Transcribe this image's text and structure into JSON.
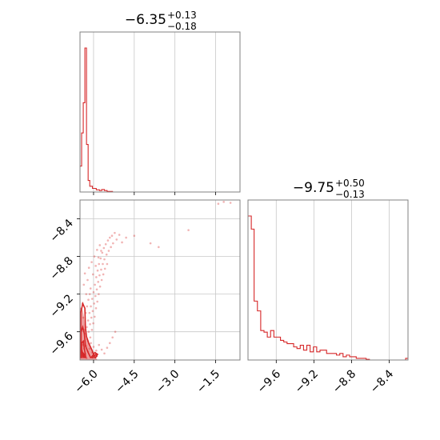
{
  "colors": {
    "series": "#d62728",
    "frame": "#808080",
    "grid": "#c8c8c8"
  },
  "chart_data": [
    {
      "type": "histogram",
      "panel": "top-left",
      "title": {
        "value": "−6.35",
        "plus": "+0.13",
        "minus": "−0.18"
      },
      "xlim": [
        -6.5,
        -0.6
      ],
      "bins": [
        [
          -6.5,
          -6.44,
          0.18
        ],
        [
          -6.44,
          -6.38,
          0.41
        ],
        [
          -6.38,
          -6.32,
          0.62
        ],
        [
          -6.32,
          -6.26,
          1.0
        ],
        [
          -6.26,
          -6.2,
          0.33
        ],
        [
          -6.2,
          -6.14,
          0.08
        ],
        [
          -6.14,
          -6.04,
          0.04
        ],
        [
          -6.04,
          -5.9,
          0.025
        ],
        [
          -5.9,
          -5.78,
          0.015
        ],
        [
          -5.78,
          -5.7,
          0.01
        ],
        [
          -5.7,
          -5.6,
          0.017
        ],
        [
          -5.6,
          -5.5,
          0.01
        ],
        [
          -5.5,
          -5.3,
          0.004
        ],
        [
          -5.3,
          -0.6,
          0.0
        ]
      ],
      "x_ticks": [
        "−6.0",
        "−4.5",
        "−3.0",
        "−1.5"
      ],
      "x_tick_values": [
        -6.0,
        -4.5,
        -3.0,
        -1.5
      ],
      "y_ticks": []
    },
    {
      "type": "histogram",
      "panel": "bottom-right",
      "title": {
        "value": "−9.75",
        "plus": "+0.50",
        "minus": "−0.13"
      },
      "xlim": [
        -9.9,
        -8.2
      ],
      "bins": [
        [
          -9.9,
          -9.865,
          0.88
        ],
        [
          -9.865,
          -9.835,
          0.8
        ],
        [
          -9.835,
          -9.8,
          0.36
        ],
        [
          -9.8,
          -9.765,
          0.3
        ],
        [
          -9.765,
          -9.73,
          0.18
        ],
        [
          -9.73,
          -9.695,
          0.17
        ],
        [
          -9.695,
          -9.66,
          0.14
        ],
        [
          -9.66,
          -9.625,
          0.18
        ],
        [
          -9.625,
          -9.59,
          0.14
        ],
        [
          -9.59,
          -9.555,
          0.14
        ],
        [
          -9.555,
          -9.52,
          0.12
        ],
        [
          -9.52,
          -9.485,
          0.11
        ],
        [
          -9.485,
          -9.45,
          0.1
        ],
        [
          -9.45,
          -9.415,
          0.1
        ],
        [
          -9.415,
          -9.38,
          0.08
        ],
        [
          -9.38,
          -9.345,
          0.07
        ],
        [
          -9.345,
          -9.31,
          0.09
        ],
        [
          -9.31,
          -9.275,
          0.06
        ],
        [
          -9.275,
          -9.24,
          0.09
        ],
        [
          -9.24,
          -9.205,
          0.05
        ],
        [
          -9.205,
          -9.17,
          0.08
        ],
        [
          -9.17,
          -9.135,
          0.05
        ],
        [
          -9.135,
          -9.1,
          0.06
        ],
        [
          -9.1,
          -9.065,
          0.06
        ],
        [
          -9.065,
          -9.03,
          0.04
        ],
        [
          -9.03,
          -8.995,
          0.04
        ],
        [
          -8.995,
          -8.96,
          0.04
        ],
        [
          -8.96,
          -8.925,
          0.03
        ],
        [
          -8.925,
          -8.89,
          0.04
        ],
        [
          -8.89,
          -8.855,
          0.02
        ],
        [
          -8.855,
          -8.82,
          0.03
        ],
        [
          -8.82,
          -8.785,
          0.02
        ],
        [
          -8.785,
          -8.75,
          0.02
        ],
        [
          -8.75,
          -8.715,
          0.01
        ],
        [
          -8.715,
          -8.68,
          0.01
        ],
        [
          -8.68,
          -8.645,
          0.01
        ],
        [
          -8.645,
          -8.61,
          0.004
        ],
        [
          -8.61,
          -8.575,
          0.0
        ],
        [
          -8.575,
          -8.54,
          0.0
        ],
        [
          -8.54,
          -8.505,
          0.0
        ],
        [
          -8.505,
          -8.47,
          0.0
        ],
        [
          -8.47,
          -8.435,
          0.0
        ],
        [
          -8.435,
          -8.4,
          0.0
        ],
        [
          -8.4,
          -8.365,
          0.0
        ],
        [
          -8.365,
          -8.33,
          0.0
        ],
        [
          -8.33,
          -8.295,
          0.0
        ],
        [
          -8.295,
          -8.26,
          0.0
        ],
        [
          -8.26,
          -8.225,
          0.0
        ],
        [
          -8.225,
          -8.2,
          0.01
        ]
      ],
      "x_ticks": [
        "−9.6",
        "−9.2",
        "−8.8",
        "−8.4"
      ],
      "x_tick_values": [
        -9.6,
        -9.2,
        -8.8,
        -8.4
      ],
      "y_ticks": []
    },
    {
      "type": "scatter",
      "panel": "bottom-left",
      "xlim": [
        -6.5,
        -0.6
      ],
      "ylim": [
        -9.9,
        -8.2
      ],
      "x_ticks": [
        "−6.0",
        "−4.5",
        "−3.0",
        "−1.5"
      ],
      "x_tick_values": [
        -6.0,
        -4.5,
        -3.0,
        -1.5
      ],
      "y_ticks": [
        "−8.4",
        "−8.8",
        "−9.2",
        "−9.6"
      ],
      "y_tick_values": [
        -8.4,
        -8.8,
        -9.2,
        -9.6
      ],
      "points": [
        [
          -6.45,
          -9.85
        ],
        [
          -6.42,
          -9.8
        ],
        [
          -6.4,
          -9.74
        ],
        [
          -6.38,
          -9.86
        ],
        [
          -6.35,
          -9.78
        ],
        [
          -6.33,
          -9.7
        ],
        [
          -6.31,
          -9.83
        ],
        [
          -6.3,
          -9.62
        ],
        [
          -6.28,
          -9.75
        ],
        [
          -6.26,
          -9.88
        ],
        [
          -6.25,
          -9.55
        ],
        [
          -6.23,
          -9.68
        ],
        [
          -6.21,
          -9.81
        ],
        [
          -6.2,
          -9.48
        ],
        [
          -6.18,
          -9.6
        ],
        [
          -6.16,
          -9.73
        ],
        [
          -6.15,
          -9.4
        ],
        [
          -6.13,
          -9.52
        ],
        [
          -6.12,
          -9.66
        ],
        [
          -6.1,
          -9.33
        ],
        [
          -6.08,
          -9.45
        ],
        [
          -6.06,
          -9.58
        ],
        [
          -6.05,
          -9.25
        ],
        [
          -6.03,
          -9.38
        ],
        [
          -6.01,
          -9.51
        ],
        [
          -6.0,
          -9.18
        ],
        [
          -5.98,
          -9.3
        ],
        [
          -5.96,
          -9.44
        ],
        [
          -5.95,
          -9.1
        ],
        [
          -5.93,
          -9.22
        ],
        [
          -5.91,
          -9.35
        ],
        [
          -5.9,
          -9.02
        ],
        [
          -5.88,
          -9.15
        ],
        [
          -5.86,
          -9.28
        ],
        [
          -5.85,
          -8.95
        ],
        [
          -5.83,
          -9.07
        ],
        [
          -5.81,
          -9.2
        ],
        [
          -5.8,
          -8.88
        ],
        [
          -5.78,
          -9.0
        ],
        [
          -5.76,
          -9.12
        ],
        [
          -5.74,
          -8.82
        ],
        [
          -5.72,
          -8.94
        ],
        [
          -5.7,
          -9.05
        ],
        [
          -5.68,
          -8.76
        ],
        [
          -5.66,
          -8.88
        ],
        [
          -5.64,
          -8.99
        ],
        [
          -5.62,
          -8.71
        ],
        [
          -5.6,
          -8.83
        ],
        [
          -5.58,
          -8.93
        ],
        [
          -5.55,
          -8.67
        ],
        [
          -5.52,
          -8.78
        ],
        [
          -5.5,
          -8.88
        ],
        [
          -5.47,
          -8.63
        ],
        [
          -5.44,
          -8.74
        ],
        [
          -5.4,
          -8.6
        ],
        [
          -5.36,
          -8.7
        ],
        [
          -5.32,
          -8.58
        ],
        [
          -5.28,
          -8.66
        ],
        [
          -5.22,
          -8.55
        ],
        [
          -5.15,
          -8.62
        ],
        [
          -5.05,
          -8.57
        ],
        [
          -4.95,
          -8.65
        ],
        [
          -4.8,
          -8.6
        ],
        [
          -4.5,
          -8.58
        ],
        [
          -3.9,
          -8.66
        ],
        [
          -3.6,
          -8.7
        ],
        [
          -2.5,
          -8.52
        ],
        [
          -1.4,
          -8.24
        ],
        [
          -1.2,
          -8.22
        ],
        [
          -0.95,
          -8.23
        ],
        [
          -6.4,
          -9.3
        ],
        [
          -6.36,
          -9.1
        ],
        [
          -6.32,
          -8.98
        ],
        [
          -6.27,
          -9.2
        ],
        [
          -6.22,
          -9.05
        ],
        [
          -6.17,
          -8.92
        ],
        [
          -6.11,
          -9.14
        ],
        [
          -6.07,
          -8.86
        ],
        [
          -6.02,
          -8.99
        ],
        [
          -5.97,
          -8.8
        ],
        [
          -5.92,
          -8.9
        ],
        [
          -5.87,
          -8.73
        ],
        [
          -5.82,
          -8.81
        ],
        [
          -5.77,
          -8.68
        ],
        [
          -5.72,
          -8.74
        ],
        [
          -6.2,
          -9.7
        ],
        [
          -6.15,
          -9.78
        ],
        [
          -6.1,
          -9.72
        ],
        [
          -6.05,
          -9.82
        ],
        [
          -6.0,
          -9.76
        ],
        [
          -5.95,
          -9.85
        ],
        [
          -5.9,
          -9.8
        ],
        [
          -5.8,
          -9.74
        ],
        [
          -5.7,
          -9.79
        ],
        [
          -5.6,
          -9.83
        ],
        [
          -5.5,
          -9.77
        ],
        [
          -5.4,
          -9.72
        ],
        [
          -5.3,
          -9.66
        ],
        [
          -5.2,
          -9.6
        ],
        [
          -6.38,
          -9.45
        ],
        [
          -6.34,
          -9.58
        ],
        [
          -6.29,
          -9.4
        ],
        [
          -6.24,
          -9.33
        ],
        [
          -6.19,
          -9.26
        ],
        [
          -6.14,
          -9.2
        ]
      ],
      "contours": [
        [
          [
            -6.47,
            -9.88
          ],
          [
            -6.47,
            -9.4
          ],
          [
            -6.4,
            -9.3
          ],
          [
            -6.32,
            -9.35
          ],
          [
            -6.3,
            -9.55
          ],
          [
            -6.26,
            -9.65
          ],
          [
            -6.18,
            -9.72
          ],
          [
            -6.05,
            -9.8
          ],
          [
            -5.95,
            -9.88
          ]
        ],
        [
          [
            -6.46,
            -9.88
          ],
          [
            -6.46,
            -9.6
          ],
          [
            -6.4,
            -9.55
          ],
          [
            -6.34,
            -9.62
          ],
          [
            -6.3,
            -9.75
          ],
          [
            -6.2,
            -9.82
          ],
          [
            -6.1,
            -9.88
          ]
        ],
        [
          [
            -6.44,
            -9.88
          ],
          [
            -6.44,
            -9.72
          ],
          [
            -6.38,
            -9.7
          ],
          [
            -6.34,
            -9.78
          ],
          [
            -6.28,
            -9.88
          ]
        ],
        [
          [
            -6.38,
            -9.88
          ],
          [
            -6.4,
            -9.82
          ],
          [
            -6.35,
            -9.84
          ],
          [
            -6.33,
            -9.88
          ]
        ],
        [
          [
            -6.1,
            -9.88
          ],
          [
            -5.95,
            -9.82
          ],
          [
            -5.85,
            -9.84
          ],
          [
            -5.95,
            -9.88
          ]
        ],
        [
          [
            -6.05,
            -9.88
          ],
          [
            -5.92,
            -9.84
          ],
          [
            -5.88,
            -9.86
          ],
          [
            -5.95,
            -9.88
          ]
        ]
      ]
    }
  ]
}
